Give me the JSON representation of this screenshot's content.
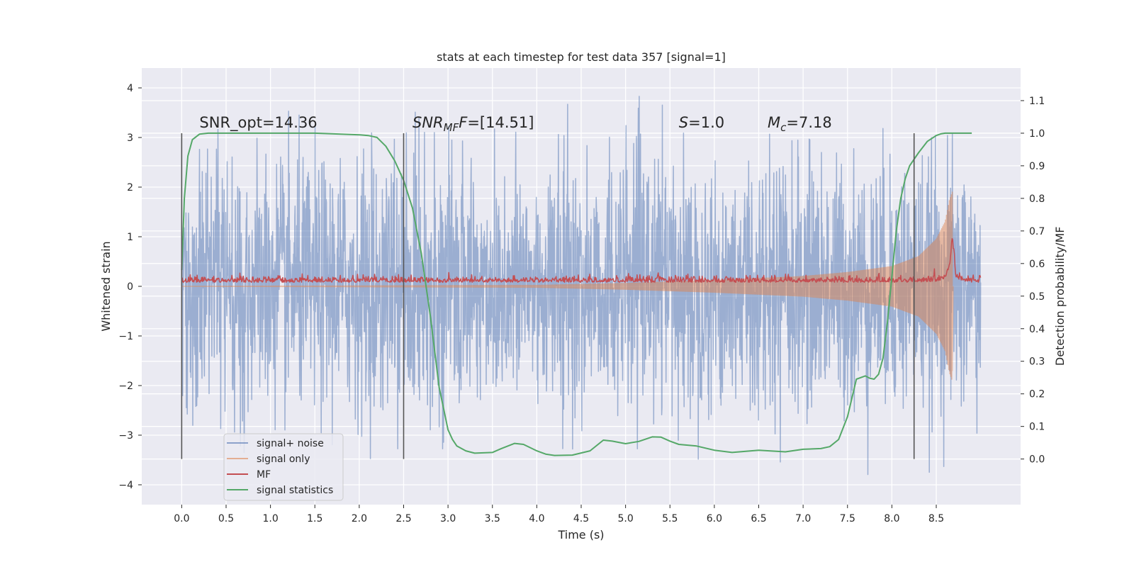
{
  "chart_data": {
    "type": "line",
    "title": "stats at each timestep for test data 357 [signal=1]",
    "xlabel": "Time (s)",
    "ylabel": "Whitened strain",
    "y2label": "Detection probability/MF",
    "xlim": [
      -0.45,
      9.45
    ],
    "ylim": [
      -4.4,
      4.4
    ],
    "y2lim": [
      -0.14,
      1.2
    ],
    "xticks": [
      "0.0",
      "0.5",
      "1.0",
      "1.5",
      "2.0",
      "2.5",
      "3.0",
      "3.5",
      "4.0",
      "4.5",
      "5.0",
      "5.5",
      "6.0",
      "6.5",
      "7.0",
      "7.5",
      "8.0",
      "8.5"
    ],
    "yticks": [
      "4",
      "3",
      "2",
      "1",
      "0",
      "−1",
      "−2",
      "−3",
      "−4"
    ],
    "y2ticks": [
      "0.0",
      "0.1",
      "0.2",
      "0.3",
      "0.4",
      "0.5",
      "0.6",
      "0.7",
      "0.8",
      "0.9",
      "1.0",
      "1.1"
    ],
    "grid": true,
    "legend_position": "lower-left",
    "background": "#eaeaf2",
    "annotations": [
      {
        "text": "SNR_opt=14.36",
        "x": 0.2,
        "y": 3.2
      },
      {
        "text": "=[14.51]",
        "math": "SNR",
        "sub": "MF",
        "x": 2.6,
        "y": 3.2
      },
      {
        "text": "=1.0",
        "math": "S",
        "x": 5.6,
        "y": 3.2
      },
      {
        "text": "=7.18",
        "math": "M",
        "sub": "c",
        "x": 6.6,
        "y": 3.2
      }
    ],
    "vertical_lines": [
      0.0,
      2.5,
      8.25
    ],
    "series": [
      {
        "name": "signal+ noise",
        "color": "#4c72b0",
        "opacity": 0.5,
        "kind": "noise",
        "x_range": [
          0.0,
          9.0
        ],
        "typical_amplitude": 1.3,
        "max_abs": 4.0
      },
      {
        "name": "signal only",
        "color": "#dd8452",
        "opacity": 0.5,
        "kind": "chirp",
        "x_range": [
          0.0,
          8.68
        ],
        "envelope": {
          "x": [
            0,
            4.0,
            5.0,
            6.0,
            6.5,
            7.0,
            7.5,
            8.0,
            8.3,
            8.5,
            8.6,
            8.65,
            8.68
          ],
          "y": [
            0,
            0.02,
            0.06,
            0.12,
            0.16,
            0.2,
            0.28,
            0.4,
            0.6,
            0.95,
            1.3,
            1.75,
            1.9
          ]
        }
      },
      {
        "name": "MF",
        "color": "#c44e52",
        "opacity": 1.0,
        "kind": "mf",
        "x": [
          0.0,
          0.5,
          1.0,
          1.5,
          2.0,
          2.5,
          3.0,
          3.5,
          4.0,
          4.5,
          5.0,
          5.5,
          6.0,
          6.5,
          7.0,
          7.5,
          8.0,
          8.3,
          8.5,
          8.6,
          8.65,
          8.68,
          8.72,
          8.8,
          9.0
        ],
        "y": [
          0.1,
          0.1,
          0.1,
          0.1,
          0.1,
          0.1,
          0.1,
          0.1,
          0.1,
          0.1,
          0.1,
          0.1,
          0.1,
          0.1,
          0.1,
          0.1,
          0.1,
          0.1,
          0.12,
          0.18,
          0.4,
          1.0,
          0.2,
          0.1,
          0.1
        ]
      },
      {
        "name": "signal statistics",
        "color": "#55a868",
        "opacity": 1.0,
        "kind": "line",
        "x": [
          0.0,
          0.03,
          0.07,
          0.12,
          0.2,
          0.3,
          0.5,
          1.0,
          1.5,
          2.0,
          2.1,
          2.2,
          2.3,
          2.4,
          2.5,
          2.6,
          2.7,
          2.8,
          2.9,
          3.0,
          3.05,
          3.1,
          3.2,
          3.3,
          3.5,
          3.6,
          3.75,
          3.85,
          4.0,
          4.1,
          4.2,
          4.4,
          4.6,
          4.75,
          4.85,
          5.0,
          5.15,
          5.3,
          5.4,
          5.5,
          5.6,
          5.8,
          6.0,
          6.2,
          6.5,
          6.8,
          7.0,
          7.2,
          7.3,
          7.4,
          7.5,
          7.6,
          7.7,
          7.75,
          7.8,
          7.85,
          7.9,
          7.95,
          8.0,
          8.05,
          8.1,
          8.15,
          8.2,
          8.3,
          8.4,
          8.5,
          8.55,
          8.6,
          8.7,
          8.8,
          8.9
        ],
        "y": [
          0.58,
          0.8,
          0.93,
          0.98,
          0.997,
          1.0,
          1.0,
          1.0,
          1.0,
          0.995,
          0.993,
          0.987,
          0.96,
          0.915,
          0.855,
          0.77,
          0.63,
          0.44,
          0.22,
          0.09,
          0.06,
          0.04,
          0.025,
          0.018,
          0.02,
          0.032,
          0.048,
          0.045,
          0.025,
          0.015,
          0.011,
          0.012,
          0.025,
          0.058,
          0.055,
          0.047,
          0.054,
          0.068,
          0.067,
          0.055,
          0.045,
          0.04,
          0.027,
          0.02,
          0.027,
          0.022,
          0.03,
          0.032,
          0.038,
          0.06,
          0.13,
          0.245,
          0.255,
          0.248,
          0.245,
          0.26,
          0.31,
          0.42,
          0.56,
          0.7,
          0.8,
          0.86,
          0.9,
          0.94,
          0.975,
          0.993,
          0.998,
          1.0,
          1.0,
          1.0,
          1.0
        ]
      }
    ]
  }
}
